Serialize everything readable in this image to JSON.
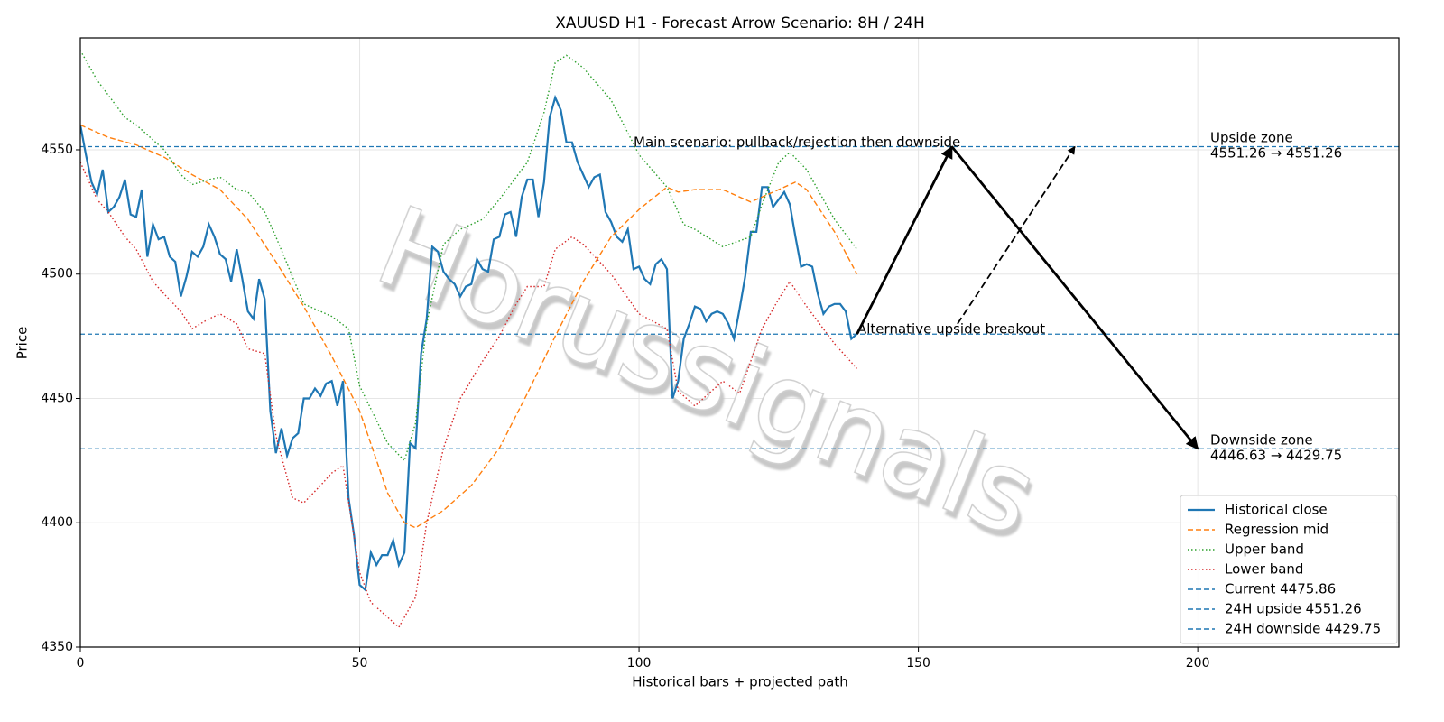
{
  "chart_data": {
    "type": "line",
    "title": "XAUUSD H1 - Forecast Arrow Scenario: 8H / 24H",
    "x_label": "Historical bars + projected path",
    "y_label": "Price",
    "watermark": "Horussignals",
    "xlim": [
      0,
      236
    ],
    "ylim": [
      4350,
      4595
    ],
    "xticks": [
      0,
      50,
      100,
      150,
      200
    ],
    "yticks": [
      4350,
      4400,
      4450,
      4500,
      4550
    ],
    "grid": true,
    "legend": "lower right",
    "series": [
      {
        "name": "Historical close",
        "color": "#1f77b4",
        "style": "solid",
        "x": [
          0,
          1,
          2,
          3,
          4,
          5,
          6,
          7,
          8,
          9,
          10,
          11,
          12,
          13,
          14,
          15,
          16,
          17,
          18,
          19,
          20,
          21,
          22,
          23,
          24,
          25,
          26,
          27,
          28,
          29,
          30,
          31,
          32,
          33,
          34,
          35,
          36,
          37,
          38,
          39,
          40,
          41,
          42,
          43,
          44,
          45,
          46,
          47,
          48,
          49,
          50,
          51,
          52,
          53,
          54,
          55,
          56,
          57,
          58,
          59,
          60,
          61,
          62,
          63,
          64,
          65,
          66,
          67,
          68,
          69,
          70,
          71,
          72,
          73,
          74,
          75,
          76,
          77,
          78,
          79,
          80,
          81,
          82,
          83,
          84,
          85,
          86,
          87,
          88,
          89,
          90,
          91,
          92,
          93,
          94,
          95,
          96,
          97,
          98,
          99,
          100,
          101,
          102,
          103,
          104,
          105,
          106,
          107,
          108,
          109,
          110,
          111,
          112,
          113,
          114,
          115,
          116,
          117,
          118,
          119,
          120,
          121,
          122,
          123,
          124,
          125,
          126,
          127,
          128,
          129,
          130,
          131,
          132,
          133,
          134,
          135,
          136,
          137,
          138,
          139
        ],
        "values": [
          4560,
          4548,
          4537,
          4532,
          4542,
          4525,
          4527,
          4531,
          4538,
          4524,
          4523,
          4534,
          4507,
          4520,
          4514,
          4515,
          4507,
          4505,
          4491,
          4499,
          4509,
          4507,
          4511,
          4520,
          4515,
          4508,
          4506,
          4497,
          4510,
          4498,
          4485,
          4482,
          4498,
          4490,
          4445,
          4428,
          4438,
          4427,
          4434,
          4436,
          4450,
          4450,
          4454,
          4451,
          4456,
          4457,
          4447,
          4457,
          4410,
          4395,
          4375,
          4373,
          4388,
          4383,
          4387,
          4387,
          4393,
          4383,
          4388,
          4432,
          4430,
          4468,
          4482,
          4511,
          4509,
          4501,
          4498,
          4496,
          4491,
          4495,
          4496,
          4506,
          4502,
          4501,
          4514,
          4515,
          4524,
          4525,
          4515,
          4531,
          4538,
          4538,
          4523,
          4537,
          4563,
          4571,
          4566,
          4553,
          4553,
          4545,
          4540,
          4535,
          4539,
          4540,
          4525,
          4521,
          4515,
          4513,
          4518,
          4502,
          4503,
          4498,
          4496,
          4504,
          4506,
          4502,
          4450,
          4457,
          4474,
          4480,
          4487,
          4486,
          4481,
          4484,
          4485,
          4484,
          4480,
          4474,
          4486,
          4499,
          4517,
          4517,
          4535,
          4535,
          4527,
          4530,
          4533,
          4528,
          4515,
          4503,
          4504,
          4503,
          4492,
          4484,
          4487,
          4488,
          4488,
          4485,
          4474,
          4476
        ]
      },
      {
        "name": "Regression mid",
        "color": "#ff7f0e",
        "style": "dashed",
        "x": [
          0,
          5,
          10,
          15,
          20,
          25,
          30,
          35,
          40,
          45,
          50,
          55,
          58,
          60,
          65,
          70,
          75,
          80,
          85,
          90,
          95,
          100,
          105,
          107,
          110,
          115,
          120,
          125,
          128,
          130,
          135,
          139
        ],
        "values": [
          4560,
          4555,
          4552,
          4547,
          4540,
          4534,
          4522,
          4505,
          4487,
          4467,
          4445,
          4412,
          4400,
          4398,
          4405,
          4415,
          4430,
          4452,
          4475,
          4497,
          4515,
          4526,
          4535,
          4533,
          4534,
          4534,
          4529,
          4534,
          4537,
          4534,
          4517,
          4500
        ]
      },
      {
        "name": "Upper band",
        "color": "#2ca02c",
        "style": "dotted",
        "x": [
          0,
          3,
          5,
          8,
          10,
          15,
          18,
          20,
          23,
          25,
          28,
          30,
          33,
          35,
          40,
          45,
          48,
          50,
          55,
          58,
          60,
          62,
          65,
          68,
          72,
          75,
          80,
          83,
          85,
          87,
          90,
          95,
          100,
          105,
          108,
          110,
          115,
          120,
          122,
          125,
          127,
          130,
          135,
          139
        ],
        "values": [
          4590,
          4578,
          4572,
          4563,
          4560,
          4550,
          4540,
          4536,
          4538,
          4539,
          4534,
          4533,
          4525,
          4515,
          4488,
          4483,
          4478,
          4455,
          4432,
          4425,
          4440,
          4480,
          4512,
          4518,
          4522,
          4530,
          4545,
          4565,
          4585,
          4588,
          4583,
          4570,
          4548,
          4535,
          4520,
          4518,
          4511,
          4515,
          4528,
          4545,
          4549,
          4542,
          4522,
          4510
        ]
      },
      {
        "name": "Lower band",
        "color": "#d62728",
        "style": "dotted",
        "x": [
          0,
          3,
          5,
          8,
          10,
          13,
          15,
          18,
          20,
          23,
          25,
          28,
          30,
          33,
          35,
          38,
          40,
          43,
          45,
          47,
          50,
          52,
          55,
          57,
          60,
          62,
          65,
          68,
          72,
          75,
          78,
          80,
          83,
          85,
          88,
          90,
          95,
          100,
          105,
          107,
          110,
          115,
          118,
          122,
          125,
          127,
          130,
          135,
          139
        ],
        "values": [
          4545,
          4530,
          4525,
          4515,
          4510,
          4497,
          4492,
          4485,
          4478,
          4482,
          4484,
          4480,
          4470,
          4468,
          4435,
          4410,
          4408,
          4415,
          4420,
          4423,
          4380,
          4368,
          4362,
          4358,
          4370,
          4400,
          4430,
          4450,
          4465,
          4475,
          4488,
          4495,
          4495,
          4510,
          4515,
          4512,
          4500,
          4484,
          4478,
          4453,
          4447,
          4457,
          4452,
          4478,
          4490,
          4497,
          4487,
          4472,
          4462
        ]
      }
    ],
    "hlines": [
      {
        "name": "Current 4475.86",
        "value": 4475.86,
        "color": "#1f77b4"
      },
      {
        "name": "24H upside 4551.26",
        "value": 4551.26,
        "color": "#1f77b4"
      },
      {
        "name": "24H downside 4429.75",
        "value": 4429.75,
        "color": "#1f77b4"
      }
    ],
    "arrows": [
      {
        "style": "solid",
        "x": [
          139,
          156
        ],
        "y": [
          4475.86,
          4551.26
        ]
      },
      {
        "style": "solid",
        "x": [
          156,
          200
        ],
        "y": [
          4551.26,
          4429.75
        ]
      },
      {
        "style": "dashed",
        "x": [
          157,
          178
        ],
        "y": [
          4480,
          4551.26
        ]
      }
    ],
    "annotations": [
      "Main scenario: pullback/rejection then downside",
      "Alternative upside breakout"
    ],
    "zone_labels": [
      [
        "Upside zone",
        "4551.26 → 4551.26"
      ],
      [
        "Downside zone",
        "4446.63 → 4429.75"
      ]
    ]
  }
}
